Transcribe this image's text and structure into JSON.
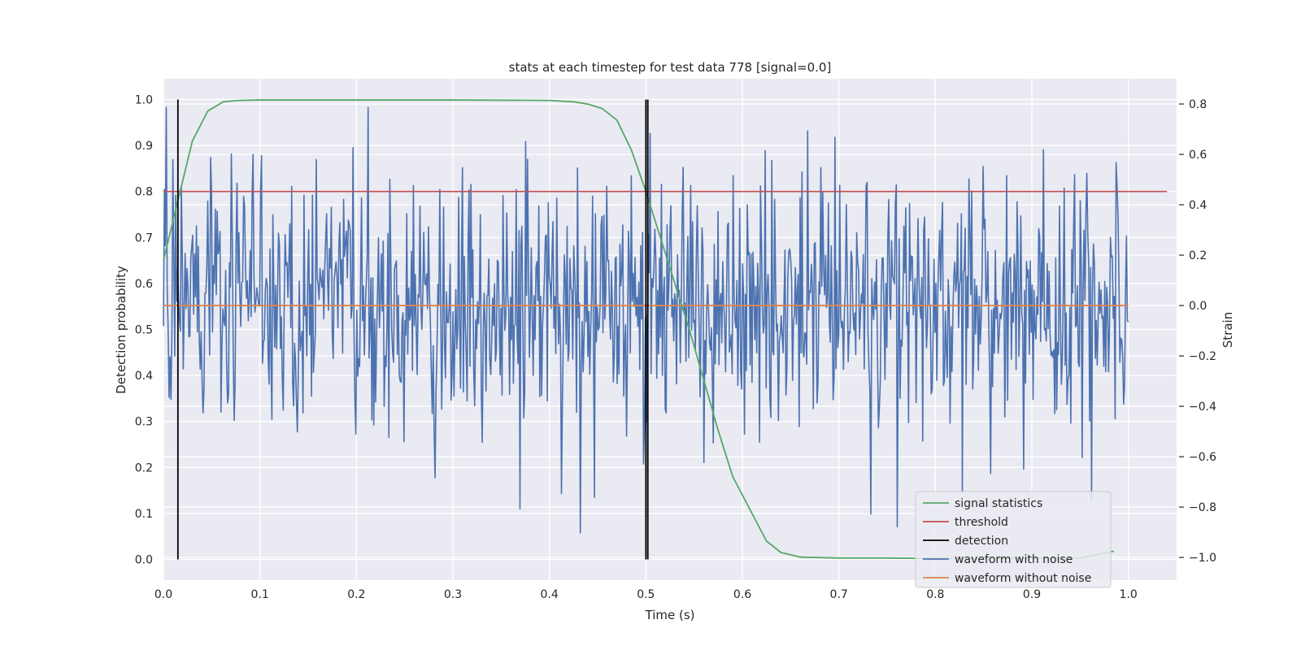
{
  "chart_data": {
    "type": "line",
    "title": "stats at each timestep for test data 778 [signal=0.0]",
    "xlabel": "Time (s)",
    "ylabel_left": "Detection probability",
    "ylabel_right": "Strain",
    "xlim": [
      0.0,
      1.05
    ],
    "ylim_left": [
      -0.045,
      1.045
    ],
    "ylim_right": [
      -1.09,
      0.9
    ],
    "x_ticks": [
      "0.0",
      "0.1",
      "0.2",
      "0.3",
      "0.4",
      "0.5",
      "0.6",
      "0.7",
      "0.8",
      "0.9",
      "1.0"
    ],
    "y_left_ticks": [
      "0.0",
      "0.1",
      "0.2",
      "0.3",
      "0.4",
      "0.5",
      "0.6",
      "0.7",
      "0.8",
      "0.9",
      "1.0"
    ],
    "y_right_ticks": [
      "−1.0",
      "−0.8",
      "−0.6",
      "−0.4",
      "−0.2",
      "0.0",
      "0.2",
      "0.4",
      "0.6",
      "0.8"
    ],
    "grid": true,
    "legend_position": "lower-right",
    "colors": {
      "signal": "#55a868",
      "threshold": "#c44e52",
      "detection": "#000000",
      "noise": "#4c72b0",
      "clean": "#dd8452",
      "axes_bg": "#eaeaf2",
      "grid": "#ffffff"
    },
    "series": [
      {
        "name": "signal statistics",
        "axis": "left",
        "x": [
          0.0,
          0.015,
          0.03,
          0.046,
          0.062,
          0.078,
          0.1,
          0.2,
          0.3,
          0.4,
          0.425,
          0.44,
          0.455,
          0.47,
          0.485,
          0.5,
          0.515,
          0.53,
          0.545,
          0.56,
          0.575,
          0.59,
          0.61,
          0.625,
          0.64,
          0.66,
          0.7,
          0.75,
          0.8,
          0.85,
          0.9,
          0.95,
          0.985
        ],
        "y": [
          0.65,
          0.78,
          0.91,
          0.975,
          0.995,
          0.998,
          0.999,
          0.999,
          0.999,
          0.998,
          0.995,
          0.99,
          0.98,
          0.955,
          0.89,
          0.8,
          0.7,
          0.6,
          0.5,
          0.39,
          0.28,
          0.18,
          0.1,
          0.04,
          0.015,
          0.005,
          0.003,
          0.003,
          0.002,
          0.002,
          0.002,
          0.003,
          0.018
        ]
      },
      {
        "name": "threshold",
        "axis": "left",
        "x": [
          0.0,
          1.04
        ],
        "y": [
          0.8,
          0.8
        ]
      },
      {
        "name": "detection",
        "axis": "left",
        "segments": [
          {
            "x": 0.015,
            "y": [
              0.0,
              1.0
            ]
          },
          {
            "x": 0.5,
            "y": [
              0.0,
              1.0
            ]
          },
          {
            "x": 0.502,
            "y": [
              0.0,
              1.0
            ]
          }
        ]
      },
      {
        "name": "waveform with noise",
        "axis": "right",
        "x_start": 0.0,
        "x_end": 1.0,
        "points": 1024,
        "y_range": [
          -0.98,
          0.84
        ],
        "std": 0.25
      },
      {
        "name": "waveform without noise",
        "axis": "right",
        "x": [
          0.0,
          1.0
        ],
        "y": [
          0.0,
          0.0
        ]
      }
    ]
  }
}
